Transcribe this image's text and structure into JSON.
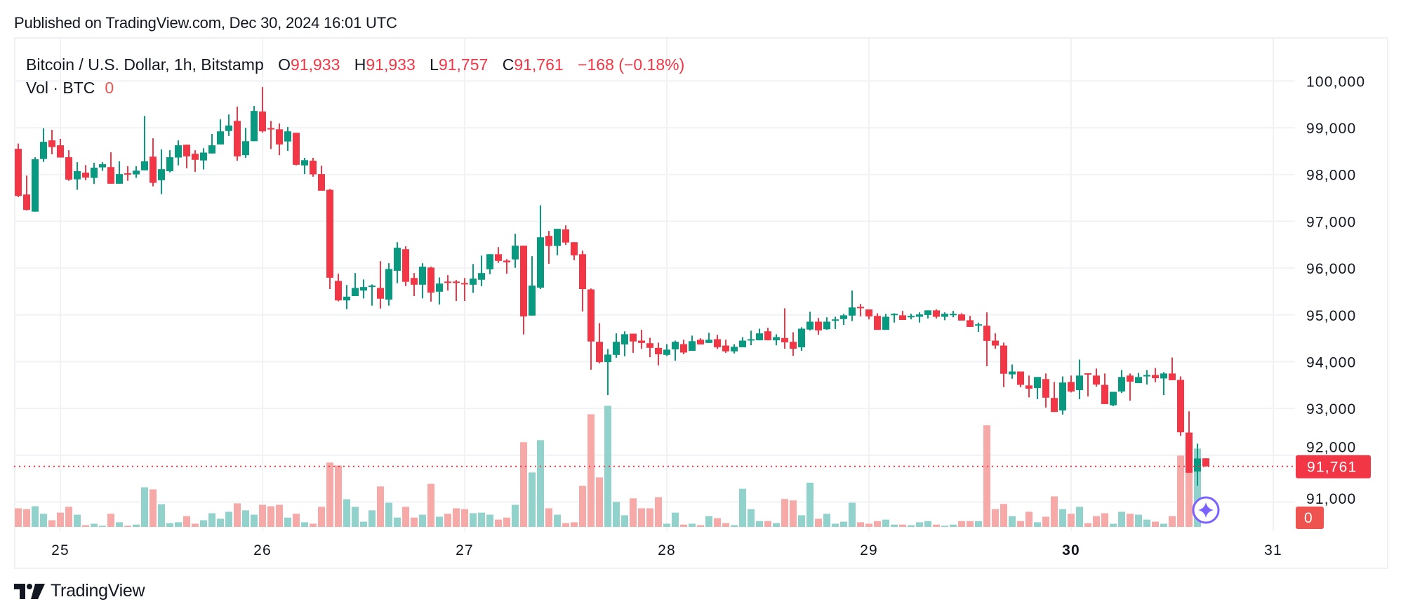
{
  "published": "Published on TradingView.com, Dec 30, 2024 16:01 UTC",
  "legend": {
    "symbol": "Bitcoin / U.S. Dollar, 1h, Bitstamp",
    "open_label": "O",
    "open": "91,933",
    "high_label": "H",
    "high": "91,933",
    "low_label": "L",
    "low": "91,757",
    "close_label": "C",
    "close": "91,761",
    "change": "−168 (−0.18%)",
    "volume_label": "Vol · BTC",
    "volume": "0"
  },
  "last_price_label": "91,761",
  "last_volume_label": "0",
  "logo_text": "TradingView",
  "colors": {
    "up": "#089981",
    "down": "#F23645",
    "volume_up": "#92D2CC",
    "volume_down": "#F7A9A7",
    "ai_icon": "#7B61FF"
  },
  "icons": {
    "ai_assistant": "sparkle-star-icon",
    "brand": "tradingview-logo-icon"
  },
  "chart_data": {
    "type": "candlestick",
    "interval": "1h",
    "y_axis": {
      "min": 90500,
      "max": 100500,
      "ticks": [
        "100,000",
        "99,000",
        "98,000",
        "97,000",
        "96,000",
        "95,000",
        "94,000",
        "93,000",
        "92,000",
        "91,000"
      ],
      "tick_values": [
        100000,
        99000,
        98000,
        97000,
        96000,
        95000,
        94000,
        93000,
        92000,
        91000
      ]
    },
    "x_axis": {
      "ticks": [
        "25",
        "26",
        "27",
        "28",
        "29",
        "30",
        "31"
      ],
      "bold_tick": "30"
    },
    "grid": true,
    "last_price": 91761,
    "volume_units": "relative",
    "days": [
      {
        "date": "2024-12-24",
        "first_hour": 19,
        "bars": [
          [
            98550,
            98662,
            97517,
            97542,
            64
          ],
          [
            97573,
            97977,
            97231,
            97243,
            61
          ],
          [
            97206,
            98370,
            97206,
            98326,
            71
          ],
          [
            98332,
            98986,
            98270,
            98699,
            45
          ],
          [
            98730,
            98955,
            98432,
            98587,
            23
          ]
        ]
      },
      {
        "date": "2024-12-25",
        "first_hour": 0,
        "bars": [
          [
            98625,
            98762,
            98363,
            98363,
            49
          ],
          [
            98370,
            98519,
            97866,
            97890,
            69
          ],
          [
            97897,
            98264,
            97673,
            98071,
            42
          ],
          [
            98040,
            98202,
            97878,
            97934,
            6
          ],
          [
            97928,
            98251,
            97797,
            98146,
            11
          ],
          [
            98152,
            98264,
            98077,
            98220,
            4
          ],
          [
            98158,
            98475,
            97803,
            97803,
            45
          ],
          [
            97803,
            98282,
            97803,
            98009,
            16
          ],
          [
            98027,
            98177,
            97866,
            98009,
            4
          ],
          [
            98003,
            98177,
            97928,
            98083,
            8
          ],
          [
            98090,
            99253,
            98090,
            98282,
            136
          ],
          [
            98382,
            98774,
            97747,
            97822,
            129
          ],
          [
            97878,
            98538,
            97579,
            98114,
            78
          ],
          [
            98071,
            98519,
            98046,
            98370,
            13
          ],
          [
            98363,
            98730,
            98195,
            98625,
            16
          ],
          [
            98637,
            98637,
            98133,
            98388,
            37
          ],
          [
            98444,
            98519,
            98058,
            98314,
            11
          ],
          [
            98301,
            98562,
            98108,
            98469,
            23
          ],
          [
            98450,
            98867,
            98450,
            98625,
            47
          ],
          [
            98643,
            99179,
            98643,
            98923,
            28
          ],
          [
            98930,
            99284,
            98824,
            99048,
            52
          ],
          [
            99147,
            99452,
            98295,
            98388,
            81
          ],
          [
            98413,
            98998,
            98357,
            98712,
            57
          ],
          [
            98712,
            99465,
            98712,
            99359,
            42
          ]
        ]
      },
      {
        "date": "2024-12-26",
        "first_hour": 0,
        "bars": [
          [
            99347,
            99869,
            98899,
            98923,
            76
          ],
          [
            98992,
            99147,
            98544,
            98974,
            71
          ],
          [
            98967,
            99091,
            98413,
            98643,
            76
          ],
          [
            98706,
            99017,
            98506,
            98923,
            32
          ],
          [
            98892,
            98892,
            98195,
            98208,
            45
          ],
          [
            98195,
            98357,
            98009,
            98307,
            16
          ],
          [
            98295,
            98357,
            97953,
            98003,
            11
          ],
          [
            98009,
            98189,
            97654,
            97654,
            69
          ],
          [
            97673,
            97691,
            95551,
            95793,
            221
          ],
          [
            95725,
            95880,
            95289,
            95308,
            211
          ],
          [
            95308,
            95638,
            95121,
            95389,
            95
          ],
          [
            95401,
            95893,
            95401,
            95575,
            69
          ],
          [
            95519,
            95756,
            95351,
            95594,
            18
          ],
          [
            95607,
            95650,
            95196,
            95625,
            57
          ],
          [
            95575,
            96148,
            95134,
            95345,
            139
          ],
          [
            95326,
            96104,
            95196,
            95980,
            83
          ],
          [
            95942,
            96553,
            95675,
            96434,
            32
          ],
          [
            96403,
            96465,
            95613,
            95706,
            69
          ],
          [
            95787,
            95893,
            95401,
            95644,
            32
          ],
          [
            95644,
            96104,
            95351,
            96030,
            42
          ],
          [
            96011,
            96030,
            95283,
            95476,
            148
          ],
          [
            95494,
            95800,
            95221,
            95669,
            35
          ],
          [
            95712,
            95849,
            95519,
            95687,
            45
          ],
          [
            95712,
            95744,
            95296,
            95687,
            64
          ]
        ]
      },
      {
        "date": "2024-12-27",
        "first_hour": 0,
        "bars": [
          [
            95681,
            95787,
            95296,
            95656,
            61
          ],
          [
            95644,
            96086,
            95470,
            95775,
            47
          ],
          [
            95750,
            96266,
            95613,
            95893,
            49
          ],
          [
            95974,
            96297,
            95868,
            96297,
            42
          ],
          [
            96297,
            96447,
            96111,
            96154,
            25
          ],
          [
            96160,
            96191,
            95880,
            96123,
            32
          ],
          [
            96185,
            96733,
            96005,
            96478,
            76
          ],
          [
            96478,
            96478,
            94580,
            94966,
            291
          ],
          [
            94984,
            96254,
            94984,
            95625,
            187
          ],
          [
            95582,
            97343,
            95551,
            96658,
            298
          ],
          [
            96689,
            96795,
            96092,
            96472,
            64
          ],
          [
            96472,
            96839,
            96272,
            96839,
            42
          ],
          [
            96826,
            96913,
            96496,
            96546,
            13
          ],
          [
            96553,
            96553,
            96167,
            96272,
            16
          ],
          [
            96297,
            96372,
            95071,
            95551,
            141
          ],
          [
            95544,
            95563,
            93827,
            94430,
            387
          ],
          [
            94424,
            94822,
            93964,
            93989,
            170
          ],
          [
            93989,
            94269,
            93285,
            94150,
            416
          ],
          [
            94144,
            94604,
            94082,
            94424,
            86
          ],
          [
            94368,
            94648,
            94113,
            94586,
            40
          ],
          [
            94598,
            94598,
            94188,
            94430,
            98
          ],
          [
            94449,
            94679,
            94275,
            94399,
            64
          ],
          [
            94393,
            94511,
            94094,
            94294,
            64
          ],
          [
            94294,
            94406,
            93920,
            94157,
            102
          ]
        ]
      },
      {
        "date": "2024-12-28",
        "first_hour": 0,
        "bars": [
          [
            94144,
            94374,
            94119,
            94256,
            11
          ],
          [
            94262,
            94449,
            94020,
            94424,
            49
          ],
          [
            94374,
            94468,
            94157,
            94194,
            8
          ],
          [
            94231,
            94555,
            94231,
            94437,
            11
          ],
          [
            94468,
            94499,
            94368,
            94368,
            6
          ],
          [
            94399,
            94617,
            94399,
            94468,
            37
          ],
          [
            94480,
            94573,
            94269,
            94306,
            30
          ],
          [
            94343,
            94468,
            94188,
            94219,
            13
          ],
          [
            94219,
            94374,
            94175,
            94318,
            6
          ],
          [
            94306,
            94524,
            94306,
            94449,
            131
          ],
          [
            94456,
            94661,
            94349,
            94480,
            61
          ],
          [
            94456,
            94704,
            94456,
            94604,
            20
          ],
          [
            94648,
            94723,
            94456,
            94456,
            20
          ],
          [
            94456,
            94586,
            94349,
            94524,
            13
          ],
          [
            94505,
            95140,
            94275,
            94412,
            96
          ],
          [
            94424,
            94629,
            94125,
            94275,
            91
          ],
          [
            94306,
            94735,
            94231,
            94704,
            40
          ],
          [
            94686,
            95065,
            94667,
            94854,
            152
          ],
          [
            94854,
            94934,
            94573,
            94667,
            28
          ],
          [
            94692,
            94947,
            94679,
            94854,
            45
          ],
          [
            94872,
            94959,
            94698,
            94903,
            11
          ],
          [
            94909,
            95022,
            94785,
            94990,
            18
          ],
          [
            94984,
            95519,
            94866,
            95158,
            83
          ],
          [
            95171,
            95233,
            94966,
            95152,
            16
          ]
        ]
      },
      {
        "date": "2024-12-29",
        "first_hour": 0,
        "bars": [
          [
            95115,
            95115,
            94903,
            94966,
            11
          ],
          [
            94978,
            95034,
            94679,
            94679,
            20
          ],
          [
            94679,
            95022,
            94679,
            94959,
            25
          ],
          [
            95003,
            95034,
            94835,
            95022,
            8
          ],
          [
            94990,
            95084,
            94891,
            94891,
            8
          ],
          [
            94947,
            95022,
            94903,
            94978,
            6
          ],
          [
            94959,
            95053,
            94835,
            95009,
            16
          ],
          [
            94997,
            95096,
            94922,
            95096,
            20
          ],
          [
            95096,
            95115,
            94922,
            94959,
            8
          ],
          [
            94959,
            95053,
            94885,
            95022,
            4
          ],
          [
            94997,
            95084,
            94947,
            95022,
            8
          ],
          [
            95009,
            95034,
            94878,
            94878,
            20
          ],
          [
            94885,
            94978,
            94742,
            94742,
            20
          ],
          [
            94779,
            94835,
            94636,
            94798,
            20
          ],
          [
            94767,
            95053,
            93902,
            94443,
            349
          ],
          [
            94449,
            94604,
            94275,
            94343,
            61
          ],
          [
            94343,
            94406,
            93453,
            93740,
            79
          ],
          [
            93727,
            93939,
            93634,
            93789,
            37
          ],
          [
            93789,
            93789,
            93453,
            93503,
            20
          ],
          [
            93491,
            93702,
            93235,
            93422,
            52
          ],
          [
            93435,
            93671,
            93197,
            93671,
            16
          ],
          [
            93627,
            93746,
            93018,
            93229,
            35
          ],
          [
            93223,
            93565,
            92924,
            92924,
            105
          ],
          [
            92955,
            93683,
            92868,
            93553,
            61
          ]
        ]
      },
      {
        "date": "2024-12-30",
        "first_hour": 0,
        "bars": [
          [
            93565,
            93702,
            93341,
            93360,
            45
          ],
          [
            93391,
            94044,
            93197,
            93702,
            69
          ],
          [
            93752,
            93752,
            93254,
            93733,
            13
          ],
          [
            93702,
            93852,
            93466,
            93509,
            37
          ],
          [
            93503,
            93746,
            93092,
            93092,
            47
          ],
          [
            93067,
            93354,
            93048,
            93354,
            11
          ],
          [
            93360,
            93820,
            93329,
            93671,
            52
          ],
          [
            93702,
            93746,
            93166,
            93572,
            45
          ],
          [
            93540,
            93758,
            93540,
            93671,
            42
          ],
          [
            93683,
            93820,
            93509,
            93715,
            25
          ],
          [
            93715,
            93864,
            93559,
            93646,
            18
          ],
          [
            93640,
            93777,
            93285,
            93746,
            11
          ],
          [
            93746,
            94088,
            93603,
            93603,
            37
          ],
          [
            93609,
            93684,
            92414,
            92489,
            245
          ],
          [
            92483,
            92937,
            91624,
            91624,
            225
          ],
          [
            91649,
            92246,
            91343,
            91929,
            269
          ],
          [
            91933,
            91933,
            91757,
            91761,
            0
          ]
        ]
      }
    ]
  }
}
